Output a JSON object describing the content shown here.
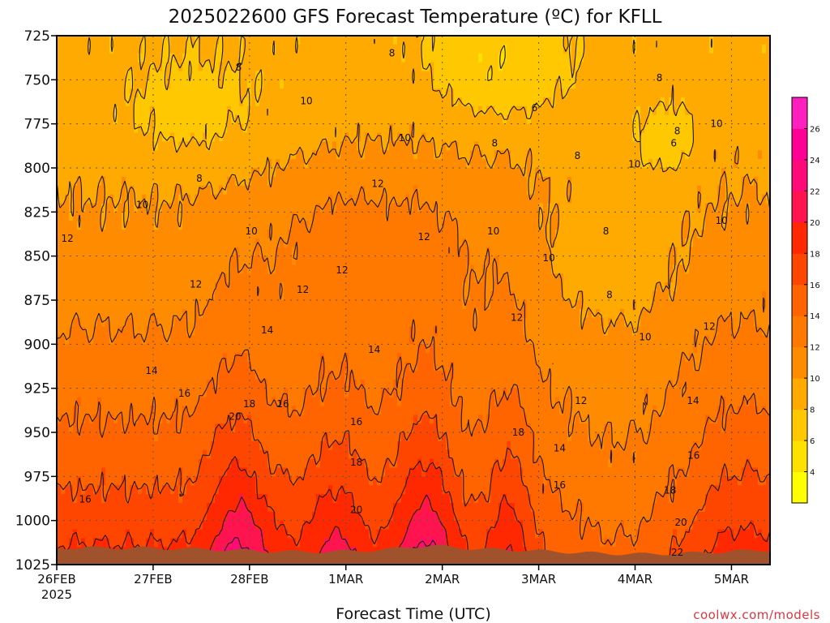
{
  "chart_data": {
    "type": "contour",
    "title": "2025022600 GFS Forecast Temperature (ºC) for KFLL",
    "xlabel": "Forecast Time (UTC)",
    "ylabel": "",
    "x_ticks": [
      "26FEB",
      "27FEB",
      "28FEB",
      "1MAR",
      "2MAR",
      "3MAR",
      "4MAR",
      "5MAR"
    ],
    "x_tick_year": "2025",
    "y_ticks": [
      "725",
      "750",
      "775",
      "800",
      "825",
      "850",
      "875",
      "900",
      "925",
      "950",
      "975",
      "1000",
      "1025"
    ],
    "y_values": [
      725,
      750,
      775,
      800,
      825,
      850,
      875,
      900,
      925,
      950,
      975,
      1000,
      1025
    ],
    "ylim": [
      725,
      1025
    ],
    "y_inverted": true,
    "grid": "dotted",
    "colorbar": {
      "placement": "right",
      "ticks": [
        "4",
        "6",
        "8",
        "10",
        "12",
        "14",
        "16",
        "18",
        "20",
        "22",
        "24",
        "26"
      ],
      "levels": [
        2,
        4,
        6,
        8,
        10,
        12,
        14,
        16,
        18,
        20,
        22,
        24,
        26,
        28
      ],
      "colors": [
        "#ffff00",
        "#ffe100",
        "#ffc800",
        "#ffaa00",
        "#ff8c00",
        "#ff7800",
        "#ff6400",
        "#ff4600",
        "#ff2800",
        "#ff1450",
        "#ff0a78",
        "#ff0096",
        "#ff1ebe"
      ]
    },
    "contour_levels": [
      6,
      8,
      10,
      12,
      14,
      16,
      18,
      20,
      22
    ],
    "contour_labels": [
      {
        "text": "8",
        "t": 0.47,
        "p": 735
      },
      {
        "text": "8",
        "t": 0.255,
        "p": 743
      },
      {
        "text": "10",
        "t": 0.35,
        "p": 762
      },
      {
        "text": "6",
        "t": 0.67,
        "p": 766
      },
      {
        "text": "8",
        "t": 0.845,
        "p": 749
      },
      {
        "text": "8",
        "t": 0.87,
        "p": 779
      },
      {
        "text": "6",
        "t": 0.865,
        "p": 786
      },
      {
        "text": "10",
        "t": 0.925,
        "p": 775
      },
      {
        "text": "10",
        "t": 0.488,
        "p": 783
      },
      {
        "text": "8",
        "t": 0.614,
        "p": 786
      },
      {
        "text": "8",
        "t": 0.73,
        "p": 793
      },
      {
        "text": "10",
        "t": 0.81,
        "p": 798
      },
      {
        "text": "8",
        "t": 0.2,
        "p": 806
      },
      {
        "text": "12",
        "t": 0.45,
        "p": 809
      },
      {
        "text": "10",
        "t": 0.12,
        "p": 821
      },
      {
        "text": "10",
        "t": 0.273,
        "p": 836
      },
      {
        "text": "10",
        "t": 0.612,
        "p": 836
      },
      {
        "text": "10",
        "t": 0.932,
        "p": 830
      },
      {
        "text": "8",
        "t": 0.77,
        "p": 836
      },
      {
        "text": "12",
        "t": 0.015,
        "p": 840
      },
      {
        "text": "12",
        "t": 0.515,
        "p": 839
      },
      {
        "text": "10",
        "t": 0.69,
        "p": 851
      },
      {
        "text": "12",
        "t": 0.4,
        "p": 858
      },
      {
        "text": "12",
        "t": 0.195,
        "p": 866
      },
      {
        "text": "12",
        "t": 0.345,
        "p": 869
      },
      {
        "text": "8",
        "t": 0.775,
        "p": 872
      },
      {
        "text": "12",
        "t": 0.645,
        "p": 885
      },
      {
        "text": "12",
        "t": 0.915,
        "p": 890
      },
      {
        "text": "14",
        "t": 0.295,
        "p": 892
      },
      {
        "text": "10",
        "t": 0.825,
        "p": 896
      },
      {
        "text": "14",
        "t": 0.445,
        "p": 903
      },
      {
        "text": "14",
        "t": 0.133,
        "p": 915
      },
      {
        "text": "14",
        "t": 0.892,
        "p": 932
      },
      {
        "text": "16",
        "t": 0.179,
        "p": 928
      },
      {
        "text": "18",
        "t": 0.27,
        "p": 934
      },
      {
        "text": "16",
        "t": 0.317,
        "p": 934
      },
      {
        "text": "12",
        "t": 0.735,
        "p": 932
      },
      {
        "text": "20",
        "t": 0.25,
        "p": 941
      },
      {
        "text": "16",
        "t": 0.42,
        "p": 944
      },
      {
        "text": "18",
        "t": 0.647,
        "p": 950
      },
      {
        "text": "16",
        "t": 0.893,
        "p": 963
      },
      {
        "text": "14",
        "t": 0.705,
        "p": 959
      },
      {
        "text": "18",
        "t": 0.42,
        "p": 967
      },
      {
        "text": "16",
        "t": 0.705,
        "p": 980
      },
      {
        "text": "18",
        "t": 0.86,
        "p": 983
      },
      {
        "text": "16",
        "t": 0.04,
        "p": 988
      },
      {
        "text": "20",
        "t": 0.42,
        "p": 994
      },
      {
        "text": "20",
        "t": 0.875,
        "p": 1001
      },
      {
        "text": "22",
        "t": 0.87,
        "p": 1018
      }
    ]
  },
  "colors": {
    "ground": "#a0522d",
    "frame": "#000000",
    "grid": "#555555",
    "credit": "#e0353f"
  },
  "credit": "coolwx.com/models"
}
